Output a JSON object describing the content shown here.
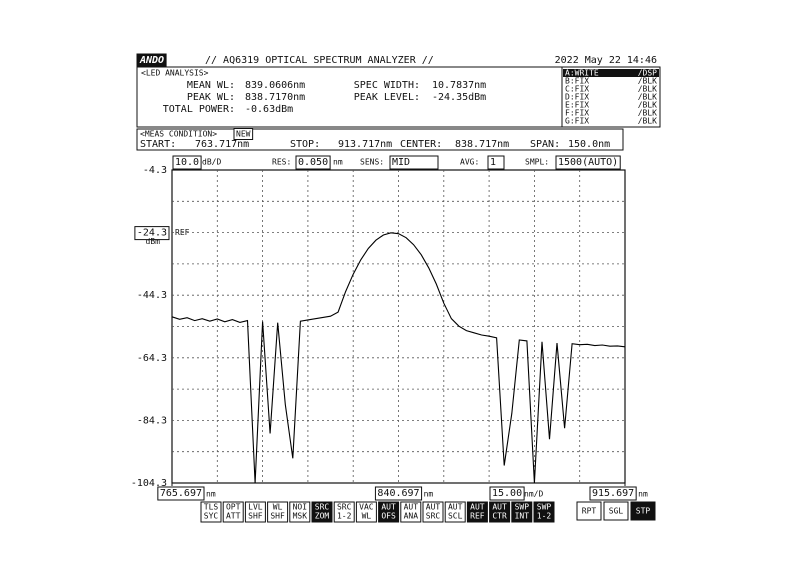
{
  "header": {
    "logo": "ANDO",
    "title": "// AQ6319 OPTICAL SPECTRUM ANALYZER //",
    "datetime": "2022 May 22 14:46"
  },
  "analysis": {
    "label": "<LED ANALYSIS>",
    "left": [
      [
        "MEAN WL:",
        "839.0606nm"
      ],
      [
        "PEAK WL:",
        "838.7170nm"
      ],
      [
        "TOTAL POWER:",
        "-0.63dBm"
      ]
    ],
    "right": [
      [
        "SPEC WIDTH:",
        "10.7837nm"
      ],
      [
        "PEAK LEVEL:",
        "-24.35dBm"
      ]
    ]
  },
  "traces": [
    [
      "A:WRITE",
      "/DSP"
    ],
    [
      "B:FIX",
      "/BLK"
    ],
    [
      "C:FIX",
      "/BLK"
    ],
    [
      "D:FIX",
      "/BLK"
    ],
    [
      "E:FIX",
      "/BLK"
    ],
    [
      "F:FIX",
      "/BLK"
    ],
    [
      "G:FIX",
      "/BLK"
    ]
  ],
  "meas": {
    "label": "<MEAS CONDITION>",
    "badge": "NEW",
    "items": [
      [
        "START:",
        "763.717nm"
      ],
      [
        "STOP:",
        "913.717nm"
      ],
      [
        "CENTER:",
        "838.717nm"
      ],
      [
        "SPAN:",
        "150.0nm"
      ]
    ]
  },
  "settings": {
    "scale": "10.0",
    "scale_unit": "dB/D",
    "res_label": "RES:",
    "res": "0.050",
    "res_unit": "nm",
    "sens_label": "SENS:",
    "sens": "MID",
    "avg_label": "AVG:",
    "avg": "1",
    "smpl_label": "SMPL:",
    "smpl": "1500(AUTO)"
  },
  "chart_data": {
    "type": "line",
    "color": "#000000",
    "grid": true,
    "ref_label": "REF",
    "y_unit": "dBm",
    "x_unit": "nm",
    "x_div": "15.00",
    "x_div_unit": "nm/D",
    "xlim": [
      765.697,
      915.697
    ],
    "xticks": [
      765.697,
      840.697,
      915.697
    ],
    "ylim": [
      -104.3,
      -4.3
    ],
    "yticks": [
      -4.3,
      -24.3,
      -44.3,
      -64.3,
      -84.3,
      -104.3
    ],
    "x": [
      765.697,
      768.197,
      770.697,
      773.197,
      775.697,
      778.197,
      780.697,
      783.197,
      785.697,
      788.197,
      790.697,
      793.197,
      795.697,
      798.197,
      800.697,
      803.197,
      805.697,
      808.197,
      810.697,
      813.197,
      815.697,
      818.197,
      820.697,
      823.197,
      825.697,
      828.197,
      830.697,
      833.197,
      835.697,
      838.197,
      840.697,
      843.197,
      845.697,
      848.197,
      850.697,
      853.197,
      855.697,
      858.197,
      860.697,
      863.197,
      865.697,
      868.197,
      870.697,
      873.197,
      875.697,
      878.197,
      880.697,
      883.197,
      885.697,
      888.197,
      890.697,
      893.197,
      895.697,
      898.197,
      900.697,
      903.197,
      905.697,
      908.197,
      910.697,
      913.197,
      915.697
    ],
    "values": [
      -51.2,
      -52.0,
      -51.5,
      -52.4,
      -51.8,
      -52.6,
      -51.9,
      -52.8,
      -52.1,
      -53.0,
      -52.4,
      -104.3,
      -52.7,
      -88.5,
      -53.1,
      -79.2,
      -96.4,
      -52.6,
      -52.2,
      -51.8,
      -51.4,
      -51.0,
      -49.7,
      -43.16,
      -37.59,
      -32.99,
      -29.37,
      -26.73,
      -25.06,
      -24.37,
      -24.66,
      -25.92,
      -28.16,
      -31.37,
      -35.56,
      -40.73,
      -46.85,
      -51.8,
      -54.2,
      -55.6,
      -56.3,
      -57.0,
      -57.4,
      -57.9,
      -98.7,
      -82.1,
      -58.6,
      -58.9,
      -104.3,
      -59.2,
      -90.3,
      -59.6,
      -86.8,
      -59.8,
      -60.1,
      -60.0,
      -60.4,
      -60.2,
      -60.6,
      -60.5,
      -60.8
    ]
  },
  "softkeys": [
    [
      "TLS",
      "SYC"
    ],
    [
      "OPT",
      "ATT"
    ],
    [
      "LVL",
      "SHF"
    ],
    [
      "WL",
      "SHF"
    ],
    [
      "NOI",
      "MSK"
    ],
    [
      "SRC",
      "ZOM"
    ],
    [
      "SRC",
      "1-2"
    ],
    [
      "VAC",
      "WL"
    ],
    [
      "AUT",
      "OFS"
    ],
    [
      "AUT",
      "ANA"
    ],
    [
      "AUT",
      "SRC"
    ],
    [
      "AUT",
      "SCL"
    ],
    [
      "AUT",
      "REF"
    ],
    [
      "AUT",
      "CTR"
    ],
    [
      "SWP",
      "INT"
    ],
    [
      "SWP",
      "1-2"
    ]
  ],
  "buttons": [
    "RPT",
    "SGL",
    "STP"
  ]
}
